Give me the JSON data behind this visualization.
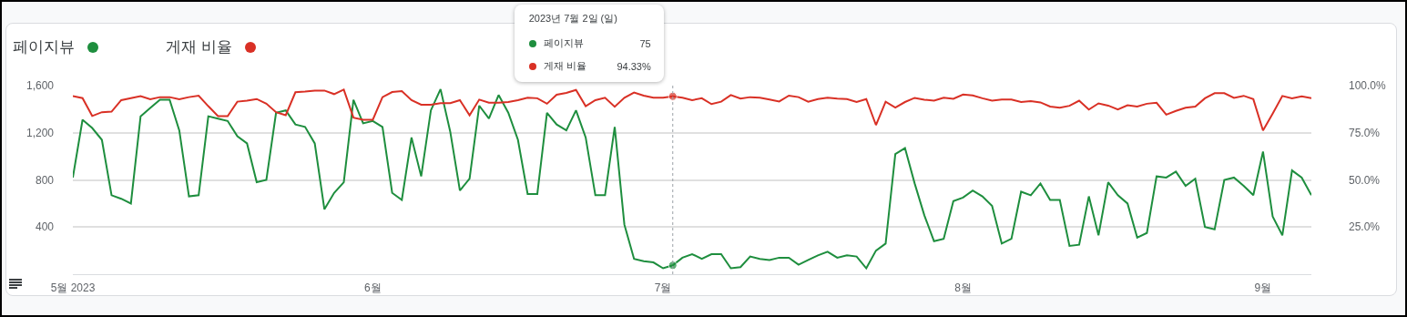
{
  "chart_data": {
    "type": "line",
    "x": [
      "2023-05-01",
      "2023-05-02",
      "2023-05-03",
      "2023-05-04",
      "2023-05-05",
      "2023-05-06",
      "2023-05-07",
      "2023-05-08",
      "2023-05-09",
      "2023-05-10",
      "2023-05-11",
      "2023-05-12",
      "2023-05-13",
      "2023-05-14",
      "2023-05-15",
      "2023-05-16",
      "2023-05-17",
      "2023-05-18",
      "2023-05-19",
      "2023-05-20",
      "2023-05-21",
      "2023-05-22",
      "2023-05-23",
      "2023-05-24",
      "2023-05-25",
      "2023-05-26",
      "2023-05-27",
      "2023-05-28",
      "2023-05-29",
      "2023-05-30",
      "2023-05-31",
      "2023-06-01",
      "2023-06-02",
      "2023-06-03",
      "2023-06-04",
      "2023-06-05",
      "2023-06-06",
      "2023-06-07",
      "2023-06-08",
      "2023-06-09",
      "2023-06-10",
      "2023-06-11",
      "2023-06-12",
      "2023-06-13",
      "2023-06-14",
      "2023-06-15",
      "2023-06-16",
      "2023-06-17",
      "2023-06-18",
      "2023-06-19",
      "2023-06-20",
      "2023-06-21",
      "2023-06-22",
      "2023-06-23",
      "2023-06-24",
      "2023-06-25",
      "2023-06-26",
      "2023-06-27",
      "2023-06-28",
      "2023-06-29",
      "2023-06-30",
      "2023-07-01",
      "2023-07-02",
      "2023-07-03",
      "2023-07-04",
      "2023-07-05",
      "2023-07-06",
      "2023-07-07",
      "2023-07-08",
      "2023-07-09",
      "2023-07-10",
      "2023-07-11",
      "2023-07-12",
      "2023-07-13",
      "2023-07-14",
      "2023-07-15",
      "2023-07-16",
      "2023-07-17",
      "2023-07-18",
      "2023-07-19",
      "2023-07-20",
      "2023-07-21",
      "2023-07-22",
      "2023-07-23",
      "2023-07-24",
      "2023-07-25",
      "2023-07-26",
      "2023-07-27",
      "2023-07-28",
      "2023-07-29",
      "2023-07-30",
      "2023-07-31",
      "2023-08-01",
      "2023-08-02",
      "2023-08-03",
      "2023-08-04",
      "2023-08-05",
      "2023-08-06",
      "2023-08-07",
      "2023-08-08",
      "2023-08-09",
      "2023-08-10",
      "2023-08-11",
      "2023-08-12",
      "2023-08-13",
      "2023-08-14",
      "2023-08-15",
      "2023-08-16",
      "2023-08-17",
      "2023-08-18",
      "2023-08-19",
      "2023-08-20",
      "2023-08-21",
      "2023-08-22",
      "2023-08-23",
      "2023-08-24",
      "2023-08-25",
      "2023-08-26",
      "2023-08-27",
      "2023-08-28",
      "2023-08-29",
      "2023-08-30",
      "2023-08-31",
      "2023-09-01",
      "2023-09-02",
      "2023-09-03",
      "2023-09-04",
      "2023-09-05",
      "2023-09-06"
    ],
    "series": [
      {
        "name": "페이지뷰",
        "color": "#1e8e3e",
        "values": [
          820,
          1310,
          1240,
          1140,
          670,
          640,
          600,
          1340,
          1410,
          1480,
          1480,
          1220,
          660,
          670,
          1340,
          1320,
          1300,
          1170,
          1110,
          780,
          800,
          1370,
          1390,
          1270,
          1250,
          1110,
          550,
          690,
          780,
          1480,
          1280,
          1300,
          1250,
          690,
          630,
          1160,
          830,
          1390,
          1570,
          1210,
          710,
          810,
          1430,
          1320,
          1520,
          1370,
          1140,
          680,
          680,
          1370,
          1270,
          1220,
          1390,
          1160,
          670,
          670,
          1250,
          420,
          130,
          110,
          100,
          50,
          75,
          140,
          170,
          130,
          170,
          170,
          50,
          60,
          150,
          130,
          120,
          140,
          140,
          80,
          120,
          160,
          190,
          140,
          160,
          150,
          50,
          200,
          260,
          1020,
          1070,
          770,
          500,
          280,
          300,
          620,
          650,
          710,
          660,
          580,
          260,
          300,
          700,
          670,
          770,
          630,
          630,
          240,
          250,
          660,
          330,
          780,
          670,
          600,
          310,
          350,
          830,
          820,
          870,
          750,
          810,
          400,
          380,
          800,
          820,
          750,
          670,
          1040,
          490,
          330,
          880,
          820,
          670
        ]
      },
      {
        "name": "게재 비율",
        "color": "#d93025",
        "axis": "y2",
        "values": [
          94.4,
          93.4,
          83.9,
          85.9,
          86.2,
          92.3,
          93.4,
          94.4,
          92.8,
          93.9,
          93.9,
          92.8,
          93.9,
          94.7,
          89.1,
          83.8,
          83.8,
          91.5,
          92.0,
          92.9,
          90.4,
          85.9,
          84.3,
          96.5,
          96.8,
          97.3,
          97.4,
          95.5,
          97.9,
          83.0,
          81.9,
          81.9,
          93.9,
          96.6,
          97.1,
          92.3,
          89.9,
          89.9,
          90.7,
          90.7,
          92.3,
          84.3,
          92.6,
          91.0,
          91.0,
          91.3,
          92.3,
          93.6,
          93.3,
          90.4,
          95.2,
          96.1,
          97.7,
          89.1,
          92.3,
          93.6,
          88.8,
          93.6,
          96.3,
          94.7,
          93.6,
          93.6,
          94.33,
          93.6,
          92.3,
          93.3,
          90.2,
          91.5,
          95.0,
          93.1,
          93.9,
          93.6,
          92.6,
          91.6,
          94.7,
          93.9,
          91.5,
          92.9,
          93.6,
          93.1,
          92.9,
          91.3,
          92.9,
          79.1,
          91.5,
          88.4,
          91.3,
          93.5,
          92.5,
          92.0,
          93.6,
          93.0,
          95.3,
          94.8,
          93.3,
          92.0,
          92.6,
          92.6,
          91.3,
          91.8,
          91.1,
          88.9,
          88.3,
          89.3,
          92.0,
          87.3,
          90.6,
          89.4,
          87.4,
          89.6,
          88.9,
          90.4,
          90.9,
          84.6,
          86.6,
          88.3,
          88.9,
          93.3,
          96.0,
          96.0,
          93.5,
          94.6,
          92.8,
          76.2,
          85.2,
          94.5,
          93.3,
          94.3,
          93.3
        ]
      }
    ],
    "xlim": [
      "2023-05-01",
      "2023-09-06"
    ],
    "xticks": [
      {
        "value": "2023-05-01",
        "label": "5월 2023"
      },
      {
        "value": "2023-06-01",
        "label": "6월"
      },
      {
        "value": "2023-07-01",
        "label": "7월"
      },
      {
        "value": "2023-08-01",
        "label": "8월"
      },
      {
        "value": "2023-09-01",
        "label": "9월"
      }
    ],
    "ylim": [
      0,
      1600
    ],
    "yticks": [
      400,
      800,
      {
        "value": 1200,
        "label": "1,200"
      },
      {
        "value": 1600,
        "label": "1,600"
      }
    ],
    "y2lim": [
      0,
      100
    ],
    "y2ticks": [
      {
        "value": 25,
        "label": "25.0%"
      },
      {
        "value": 50,
        "label": "50.0%"
      },
      {
        "value": 75,
        "label": "75.0%"
      },
      {
        "value": 100,
        "label": "100.0%"
      }
    ],
    "ref_lines": [
      {
        "axis": "x",
        "value": "2023-07-02",
        "color": "#9aa0a6",
        "line_style": "dotted"
      }
    ],
    "annotations": [
      "2023년 7월 2일 (일)",
      "75",
      "94.33%"
    ],
    "grid": "y",
    "legend": "top left"
  }
}
